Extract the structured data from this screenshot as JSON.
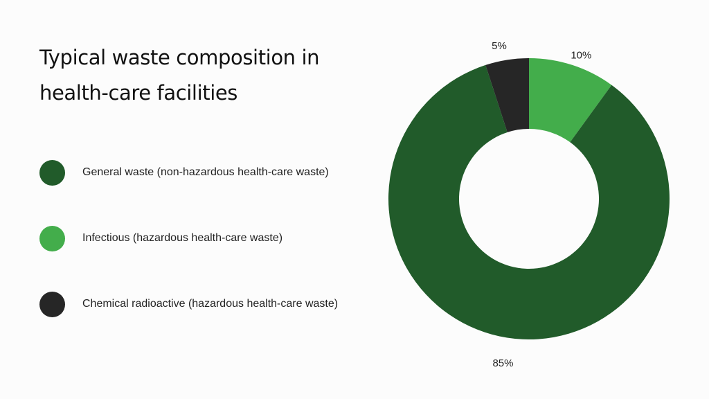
{
  "chart_data": {
    "type": "pie",
    "variant": "donut",
    "title": "Typical waste composition in health-care facilities",
    "legend_position": "left",
    "slices": [
      {
        "name": "Infectious (hazardous health-care waste)",
        "value": 10,
        "label": "10%",
        "color": "#43ad4b"
      },
      {
        "name": "General waste (non-hazardous health-care waste)",
        "value": 85,
        "label": "85%",
        "color": "#215b2a"
      },
      {
        "name": "Chemical radioactive (hazardous health-care waste)",
        "value": 5,
        "label": "5%",
        "color": "#262626"
      }
    ],
    "legend_order": [
      1,
      0,
      2
    ]
  }
}
